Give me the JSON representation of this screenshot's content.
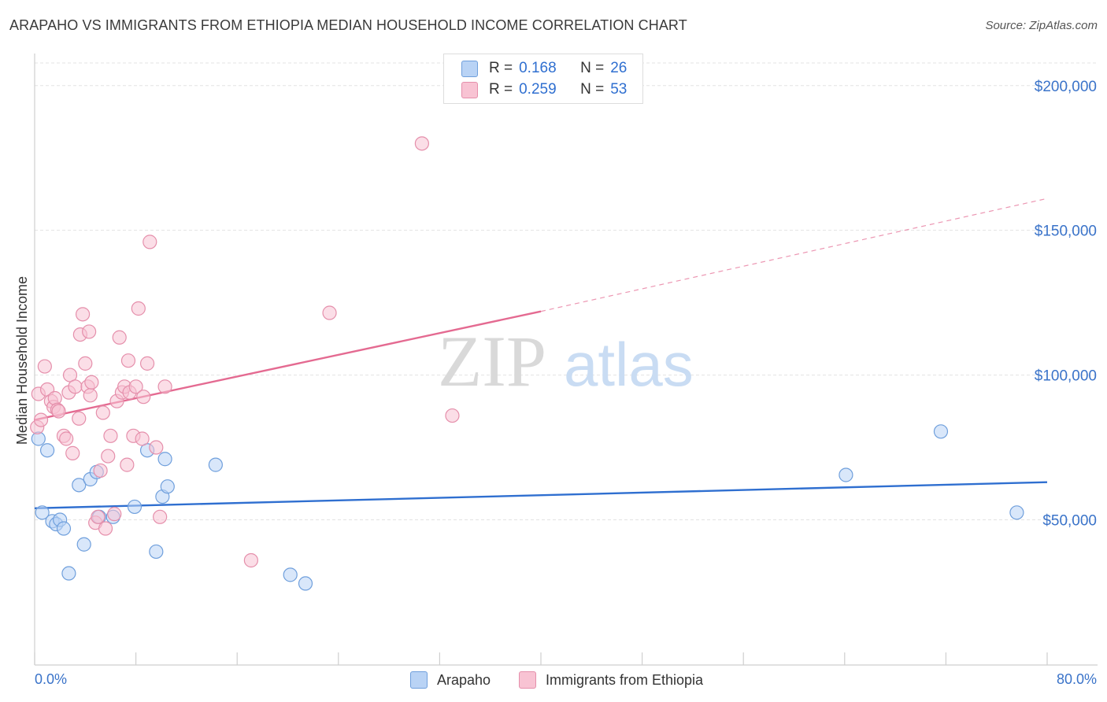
{
  "title": "ARAPAHO VS IMMIGRANTS FROM ETHIOPIA MEDIAN HOUSEHOLD INCOME CORRELATION CHART",
  "source": "Source: ZipAtlas.com",
  "watermark": {
    "zip": "ZIP",
    "atlas": "atlas"
  },
  "colors": {
    "blue_fill": "#b9d3f5",
    "blue_stroke": "#6f9fdc",
    "blue_line": "#2f6fd0",
    "pink_fill": "#f8c3d3",
    "pink_stroke": "#e58fab",
    "pink_line": "#e46a91",
    "axis_label": "#3a73c9",
    "grid": "#e3e3e3"
  },
  "legend": {
    "series": [
      {
        "r_label": "R =",
        "r_value": "0.168",
        "n_label": "N =",
        "n_value": "26"
      },
      {
        "r_label": "R =",
        "r_value": "0.259",
        "n_label": "N =",
        "n_value": "53"
      }
    ]
  },
  "bottom_legend": {
    "items": [
      "Arapaho",
      "Immigrants from Ethiopia"
    ]
  },
  "chart_data": {
    "type": "scatter",
    "title": "ARAPAHO VS IMMIGRANTS FROM ETHIOPIA MEDIAN HOUSEHOLD INCOME CORRELATION CHART",
    "xlabel": "",
    "ylabel": "Median Household Income",
    "xlim": [
      0,
      80
    ],
    "ylim": [
      5000,
      210000
    ],
    "x_tick_labels": [
      "0.0%",
      "80.0%"
    ],
    "y_ticks": [
      50000,
      100000,
      150000,
      200000
    ],
    "y_tick_labels": [
      "$50,000",
      "$100,000",
      "$150,000",
      "$200,000"
    ],
    "grid": true,
    "legend_position": "top-center",
    "series": [
      {
        "name": "Arapaho",
        "color": "#6f9fdc",
        "points": [
          [
            0.3,
            78000
          ],
          [
            0.6,
            52500
          ],
          [
            1.0,
            74000
          ],
          [
            1.4,
            49500
          ],
          [
            1.7,
            48500
          ],
          [
            2.0,
            50000
          ],
          [
            2.3,
            47000
          ],
          [
            2.7,
            31500
          ],
          [
            3.5,
            62000
          ],
          [
            3.9,
            41500
          ],
          [
            4.4,
            64000
          ],
          [
            4.9,
            66500
          ],
          [
            5.1,
            51000
          ],
          [
            6.2,
            51000
          ],
          [
            7.9,
            54500
          ],
          [
            8.9,
            74000
          ],
          [
            9.6,
            39000
          ],
          [
            10.1,
            58000
          ],
          [
            10.3,
            71000
          ],
          [
            10.5,
            61500
          ],
          [
            14.3,
            69000
          ],
          [
            20.2,
            31000
          ],
          [
            21.4,
            28000
          ],
          [
            64.1,
            65500
          ],
          [
            71.6,
            80500
          ],
          [
            77.6,
            52500
          ]
        ],
        "trend": {
          "x": [
            0,
            80
          ],
          "y": [
            54000,
            63000
          ],
          "style": "solid"
        }
      },
      {
        "name": "Immigrants from Ethiopia",
        "color": "#e58fab",
        "points": [
          [
            0.2,
            82000
          ],
          [
            0.3,
            93500
          ],
          [
            0.5,
            84500
          ],
          [
            0.8,
            103000
          ],
          [
            1.0,
            95000
          ],
          [
            1.3,
            91000
          ],
          [
            1.5,
            89000
          ],
          [
            1.6,
            92000
          ],
          [
            1.8,
            88000
          ],
          [
            1.9,
            87500
          ],
          [
            2.3,
            79000
          ],
          [
            2.5,
            78000
          ],
          [
            2.7,
            94000
          ],
          [
            2.8,
            100000
          ],
          [
            3.0,
            73000
          ],
          [
            3.2,
            96000
          ],
          [
            3.5,
            85000
          ],
          [
            3.6,
            114000
          ],
          [
            3.8,
            121000
          ],
          [
            4.0,
            104000
          ],
          [
            4.2,
            96000
          ],
          [
            4.3,
            115000
          ],
          [
            4.4,
            93000
          ],
          [
            4.5,
            97500
          ],
          [
            4.8,
            49000
          ],
          [
            5.0,
            51000
          ],
          [
            5.2,
            67000
          ],
          [
            5.4,
            87000
          ],
          [
            5.6,
            47000
          ],
          [
            5.8,
            72000
          ],
          [
            6.0,
            79000
          ],
          [
            6.3,
            52000
          ],
          [
            6.5,
            91000
          ],
          [
            6.7,
            113000
          ],
          [
            6.9,
            94000
          ],
          [
            7.1,
            96000
          ],
          [
            7.3,
            69000
          ],
          [
            7.4,
            105000
          ],
          [
            7.5,
            94000
          ],
          [
            7.8,
            79000
          ],
          [
            8.0,
            96000
          ],
          [
            8.2,
            123000
          ],
          [
            8.5,
            78000
          ],
          [
            8.6,
            92500
          ],
          [
            8.9,
            104000
          ],
          [
            9.1,
            146000
          ],
          [
            9.6,
            75000
          ],
          [
            9.9,
            51000
          ],
          [
            10.3,
            96000
          ],
          [
            17.1,
            36000
          ],
          [
            23.3,
            121500
          ],
          [
            30.6,
            180000
          ],
          [
            33.0,
            86000
          ]
        ],
        "trend": {
          "x": [
            0,
            40
          ],
          "y": [
            84500,
            122000
          ],
          "style": "solid"
        },
        "trend_extension": {
          "x": [
            40,
            80
          ],
          "y": [
            122000,
            161000
          ],
          "style": "dashed"
        }
      }
    ]
  }
}
